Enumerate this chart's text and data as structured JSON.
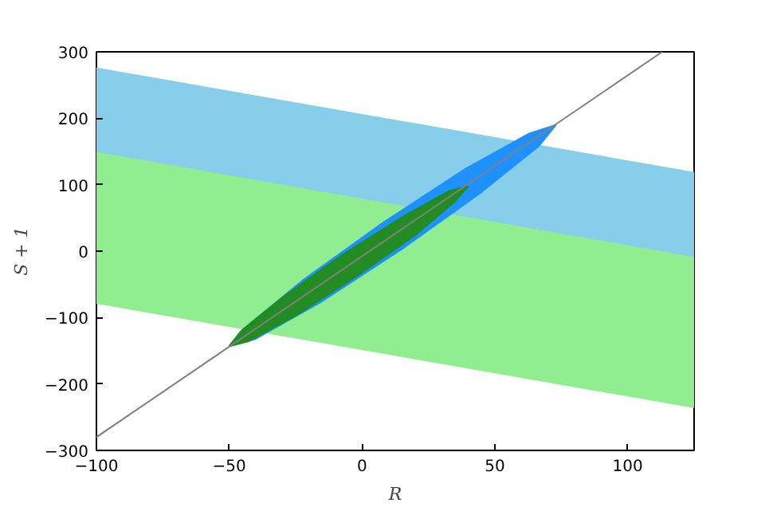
{
  "chart_data": {
    "type": "area",
    "xlabel": "R",
    "ylabel": "S + 1",
    "xlim": [
      -100,
      125
    ],
    "ylim": [
      -300,
      300
    ],
    "xticks": [
      -100,
      -50,
      0,
      50,
      100
    ],
    "yticks": [
      -300,
      -200,
      -100,
      0,
      100,
      200,
      300
    ],
    "series": [
      {
        "color": "#87ceeb",
        "x": [
          -100,
          125,
          125,
          -100
        ],
        "values": [
          275,
          118,
          -10,
          148
        ]
      },
      {
        "color": "#90ee90",
        "x": [
          -100,
          125,
          125,
          -100
        ],
        "values": [
          148,
          -10,
          -235,
          -78
        ]
      },
      {
        "color": "#1e90ff",
        "x": [
          73,
          66.5,
          45,
          15,
          -16,
          -40,
          -50,
          -43,
          -22,
          8,
          39,
          63
        ],
        "values": [
          190,
          158,
          89,
          3,
          -78,
          -132,
          -143,
          -112,
          -43,
          43,
          124,
          177
        ]
      },
      {
        "color": "#228b22",
        "x": [
          40,
          35,
          20,
          -2.5,
          -25,
          -43,
          -50,
          -45.5,
          -30,
          -8,
          15,
          32.5
        ],
        "values": [
          98,
          75,
          24,
          -39,
          -97,
          -136,
          -143,
          -120,
          -70,
          -7,
          51,
          90
        ]
      },
      {
        "type": "line",
        "color": "#808080",
        "x": [
          -100,
          113
        ],
        "values": [
          -280,
          300
        ]
      }
    ]
  }
}
